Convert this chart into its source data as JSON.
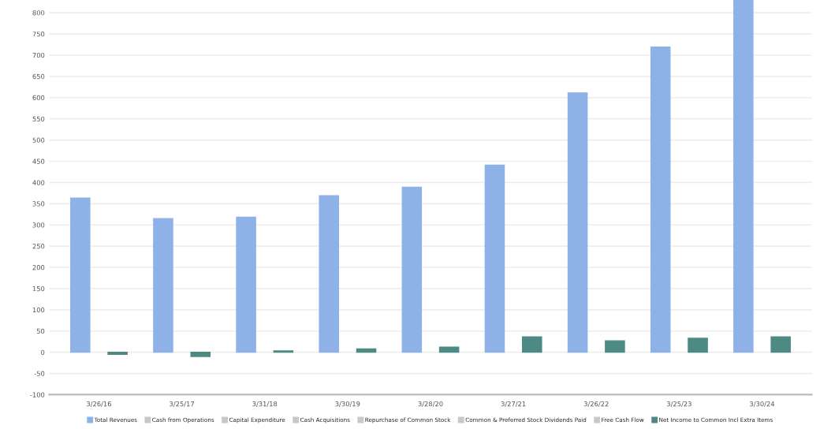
{
  "chart_data": {
    "type": "bar",
    "categories": [
      "3/26/16",
      "3/25/17",
      "3/31/18",
      "3/30/19",
      "3/28/20",
      "3/27/21",
      "3/26/22",
      "3/25/23",
      "3/30/24"
    ],
    "series": [
      {
        "name": "Total Revenues",
        "color": "#8eb2e8",
        "values": [
          363,
          315,
          318,
          369,
          389,
          441,
          611,
          719,
          830
        ]
      },
      {
        "name": "Cash from Operations",
        "color": "#c8c8c8",
        "values": [
          null,
          null,
          null,
          null,
          null,
          null,
          null,
          null,
          null
        ]
      },
      {
        "name": "Capital Expenditure",
        "color": "#c8c8c8",
        "values": [
          null,
          null,
          null,
          null,
          null,
          null,
          null,
          null,
          null
        ]
      },
      {
        "name": "Cash Acquisitions",
        "color": "#c8c8c8",
        "values": [
          null,
          null,
          null,
          null,
          null,
          null,
          null,
          null,
          null
        ]
      },
      {
        "name": "Repurchase of Common Stock",
        "color": "#c8c8c8",
        "values": [
          null,
          null,
          null,
          null,
          null,
          null,
          null,
          null,
          null
        ]
      },
      {
        "name": "Common & Preferred Stock Dividends Paid",
        "color": "#c8c8c8",
        "values": [
          null,
          null,
          null,
          null,
          null,
          null,
          null,
          null,
          null
        ]
      },
      {
        "name": "Free Cash Flow",
        "color": "#c8c8c8",
        "values": [
          null,
          null,
          null,
          null,
          null,
          null,
          null,
          null,
          null
        ]
      },
      {
        "name": "Net Income to Common Incl Extra Items",
        "color": "#4e8a84",
        "values": [
          -5,
          -10,
          3,
          8,
          12,
          36,
          27,
          33,
          36
        ]
      }
    ],
    "ylim": [
      -100,
      830
    ],
    "yticks": [
      -100,
      -50,
      0,
      50,
      100,
      150,
      200,
      250,
      300,
      350,
      400,
      450,
      500,
      550,
      600,
      650,
      700,
      750,
      800
    ],
    "grid": "y",
    "legend": "bottom"
  }
}
